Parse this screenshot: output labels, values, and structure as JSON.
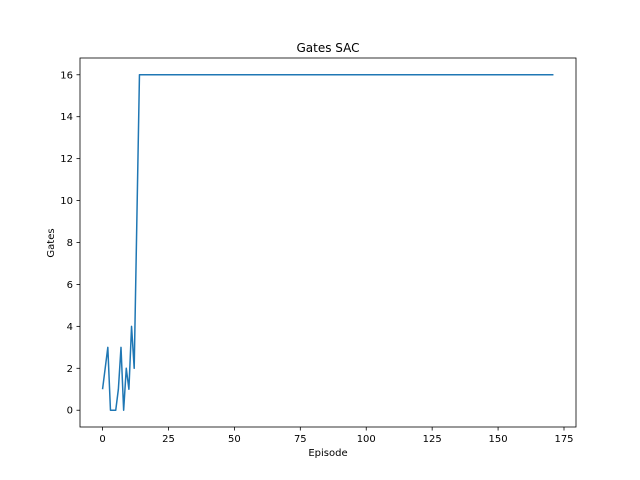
{
  "chart_data": {
    "type": "line",
    "title": "Gates SAC",
    "xlabel": "Episode",
    "ylabel": "Gates",
    "xlim": [
      -8.55,
      179.55
    ],
    "ylim": [
      -0.8,
      16.8
    ],
    "xticks": [
      0,
      25,
      50,
      75,
      100,
      125,
      150,
      175
    ],
    "yticks": [
      0,
      2,
      4,
      6,
      8,
      10,
      12,
      14,
      16
    ],
    "grid": false,
    "series": [
      {
        "color": "#1f77b4",
        "x": [
          0,
          1,
          2,
          3,
          4,
          5,
          6,
          7,
          8,
          9,
          10,
          11,
          12,
          13,
          14,
          171
        ],
        "y": [
          1,
          2,
          3,
          0,
          0,
          0,
          1,
          3,
          0,
          2,
          1,
          4,
          2,
          9,
          16,
          16
        ]
      }
    ]
  }
}
